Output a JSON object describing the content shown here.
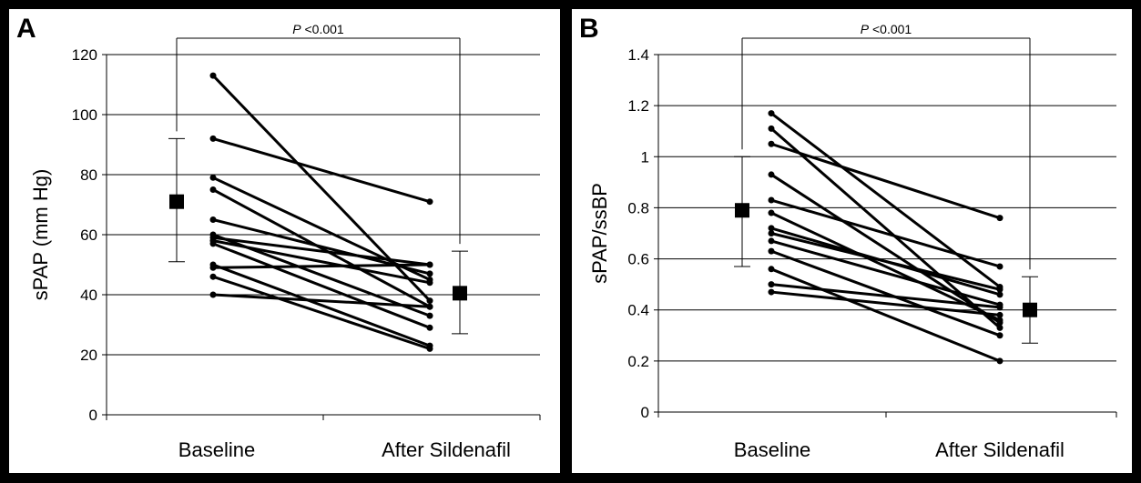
{
  "chart_data": [
    {
      "panel": "A",
      "type": "line",
      "ylabel": "sPAP (mm Hg)",
      "ylim": [
        0,
        120
      ],
      "yticks": [
        0,
        20,
        40,
        60,
        80,
        100,
        120
      ],
      "categories": [
        "Baseline",
        "After Sildenafil"
      ],
      "grid": true,
      "significance": "P <0.001",
      "series": [
        {
          "values": [
            113,
            38
          ]
        },
        {
          "values": [
            92,
            71
          ]
        },
        {
          "values": [
            79,
            45
          ]
        },
        {
          "values": [
            75,
            36
          ]
        },
        {
          "values": [
            65,
            47
          ]
        },
        {
          "values": [
            60,
            33
          ]
        },
        {
          "values": [
            59,
            50
          ]
        },
        {
          "values": [
            58,
            44
          ]
        },
        {
          "values": [
            57,
            29
          ]
        },
        {
          "values": [
            50,
            23
          ]
        },
        {
          "values": [
            49,
            50
          ]
        },
        {
          "values": [
            46,
            22
          ]
        },
        {
          "values": [
            40,
            36
          ]
        }
      ],
      "summary": [
        {
          "category": "Baseline",
          "mean": 71,
          "low": 51,
          "high": 92
        },
        {
          "category": "After Sildenafil",
          "mean": 40.5,
          "low": 27,
          "high": 54.5
        }
      ]
    },
    {
      "panel": "B",
      "type": "line",
      "ylabel": "sPAP/ssBP",
      "ylim": [
        0,
        1.4
      ],
      "yticks": [
        "0",
        "0.2",
        "0.4",
        "0.6",
        "0.8",
        "1",
        "1.2",
        "1.4"
      ],
      "categories": [
        "Baseline",
        "After Sildenafil"
      ],
      "grid": true,
      "significance": "P <0.001",
      "series": [
        {
          "values": [
            1.17,
            0.49
          ]
        },
        {
          "values": [
            1.11,
            0.33
          ]
        },
        {
          "values": [
            1.05,
            0.76
          ]
        },
        {
          "values": [
            0.93,
            0.35
          ]
        },
        {
          "values": [
            0.83,
            0.57
          ]
        },
        {
          "values": [
            0.78,
            0.36
          ]
        },
        {
          "values": [
            0.72,
            0.46
          ]
        },
        {
          "values": [
            0.7,
            0.48
          ]
        },
        {
          "values": [
            0.67,
            0.42
          ]
        },
        {
          "values": [
            0.63,
            0.3
          ]
        },
        {
          "values": [
            0.56,
            0.2
          ]
        },
        {
          "values": [
            0.5,
            0.41
          ]
        },
        {
          "values": [
            0.47,
            0.38
          ]
        }
      ],
      "summary": [
        {
          "category": "Baseline",
          "mean": 0.79,
          "low": 0.57,
          "high": 1.0
        },
        {
          "category": "After Sildenafil",
          "mean": 0.4,
          "low": 0.27,
          "high": 0.53
        }
      ]
    }
  ],
  "panels": {
    "a_letter": "A",
    "b_letter": "B"
  },
  "colors": {
    "line": "#000000",
    "grid": "#000000",
    "background": "#ffffff",
    "marker": "#000000"
  }
}
